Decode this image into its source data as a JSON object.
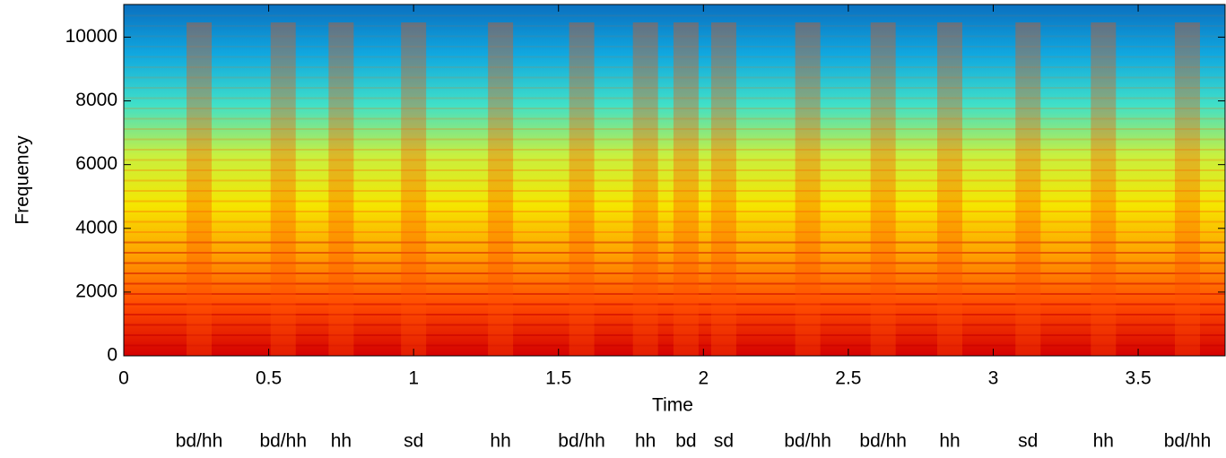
{
  "chart_data": {
    "type": "spectrogram",
    "xlabel": "Time",
    "ylabel": "Frequency",
    "xlim": [
      0,
      3.8
    ],
    "ylim": [
      0,
      11025
    ],
    "xticks": [
      0,
      0.5,
      1,
      1.5,
      2,
      2.5,
      3,
      3.5
    ],
    "yticks": [
      0,
      2000,
      4000,
      6000,
      8000,
      10000
    ],
    "colormap": [
      "#d40000",
      "#ff4a00",
      "#ffa000",
      "#f5e600",
      "#c8f040",
      "#40e0c8",
      "#10a8e0",
      "#0a70c0"
    ],
    "annotations": [
      {
        "text": "bd/hh",
        "x": 0.26
      },
      {
        "text": "bd/hh",
        "x": 0.55
      },
      {
        "text": "hh",
        "x": 0.75
      },
      {
        "text": "sd",
        "x": 1.0
      },
      {
        "text": "hh",
        "x": 1.3
      },
      {
        "text": "bd/hh",
        "x": 1.58
      },
      {
        "text": "hh",
        "x": 1.8
      },
      {
        "text": "bd",
        "x": 1.94
      },
      {
        "text": "sd",
        "x": 2.07
      },
      {
        "text": "bd/hh",
        "x": 2.36
      },
      {
        "text": "bd/hh",
        "x": 2.62
      },
      {
        "text": "hh",
        "x": 2.85
      },
      {
        "text": "sd",
        "x": 3.12
      },
      {
        "text": "hh",
        "x": 3.38
      },
      {
        "text": "bd/hh",
        "x": 3.67
      }
    ]
  }
}
